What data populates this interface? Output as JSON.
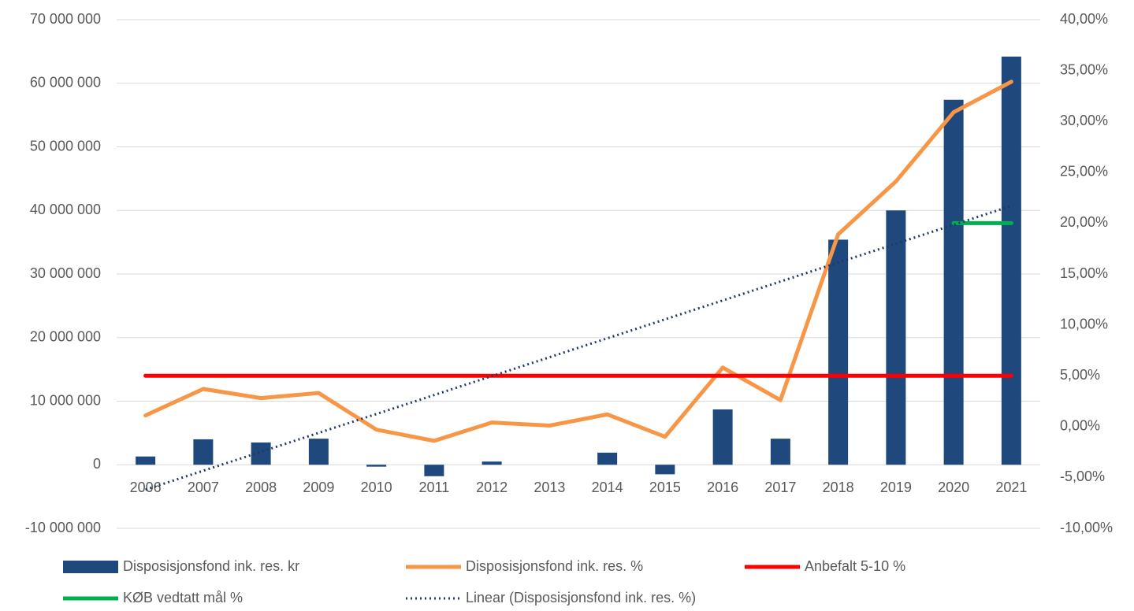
{
  "chart_data": {
    "type": "bar",
    "categories": [
      "2006",
      "2007",
      "2008",
      "2009",
      "2010",
      "2011",
      "2012",
      "2013",
      "2014",
      "2015",
      "2016",
      "2017",
      "2018",
      "2019",
      "2020",
      "2021"
    ],
    "series": [
      {
        "name": "Disposisjonsfond ink. res. kr",
        "type": "bar",
        "color": "#1f497d",
        "values": [
          1300000,
          4000000,
          3500000,
          4100000,
          -300000,
          -1800000,
          500000,
          0,
          1900000,
          -1500000,
          8700000,
          4100000,
          35400000,
          40000000,
          57400000,
          64200000
        ]
      },
      {
        "name": "Disposisjonsfond ink. res. %",
        "type": "line",
        "axis": "y2",
        "color": "#f79646",
        "values": [
          1.1,
          3.7,
          2.8,
          3.3,
          -0.3,
          -1.4,
          0.4,
          0.1,
          1.2,
          -1.0,
          5.8,
          2.6,
          18.9,
          24.1,
          30.9,
          33.9
        ]
      },
      {
        "name": "Anbefalt 5-10 %",
        "type": "line",
        "axis": "y2",
        "color": "#ff0000",
        "values": [
          5,
          5,
          5,
          5,
          5,
          5,
          5,
          5,
          5,
          5,
          5,
          5,
          5,
          5,
          5,
          5
        ]
      },
      {
        "name": "KØB vedtatt mål  %",
        "type": "line",
        "axis": "y2",
        "color": "#00b050",
        "values": [
          null,
          null,
          null,
          null,
          null,
          null,
          null,
          null,
          null,
          null,
          null,
          null,
          null,
          null,
          20,
          20
        ]
      },
      {
        "name": "Linear (Disposisjonsfond ink. res. %)",
        "type": "line",
        "axis": "y2",
        "dashed": true,
        "color": "#1f3864",
        "values": [
          -6.2,
          -4.34,
          -2.48,
          -0.62,
          1.24,
          3.1,
          4.96,
          6.82,
          8.68,
          10.54,
          12.4,
          14.26,
          16.12,
          17.98,
          19.84,
          21.7
        ]
      }
    ],
    "ylim": [
      -10000000,
      70000000
    ],
    "yticks": [
      {
        "value": -10000000,
        "label": "-10 000 000"
      },
      0,
      {
        "value": 10000000,
        "label": "10 000 000"
      },
      {
        "value": 20000000,
        "label": "20 000 000"
      },
      {
        "value": 30000000,
        "label": "30 000 000"
      },
      {
        "value": 40000000,
        "label": "40 000 000"
      },
      {
        "value": 50000000,
        "label": "50 000 000"
      },
      {
        "value": 60000000,
        "label": "60 000 000"
      },
      {
        "value": 70000000,
        "label": "70 000 000"
      }
    ],
    "y2lim": [
      -10,
      40
    ],
    "y2ticks": [
      {
        "value": -10,
        "label": "-10,00%"
      },
      {
        "value": -5,
        "label": "-5,00%"
      },
      {
        "value": 0,
        "label": "0,00%"
      },
      {
        "value": 5,
        "label": "5,00%"
      },
      {
        "value": 10,
        "label": "10,00%"
      },
      {
        "value": 15,
        "label": "15,00%"
      },
      {
        "value": 20,
        "label": "20,00%"
      },
      {
        "value": 25,
        "label": "25,00%"
      },
      {
        "value": 30,
        "label": "30,00%"
      },
      {
        "value": 35,
        "label": "35,00%"
      },
      {
        "value": 40,
        "label": "40,00%"
      }
    ],
    "grid": true,
    "legend": "bottom"
  }
}
